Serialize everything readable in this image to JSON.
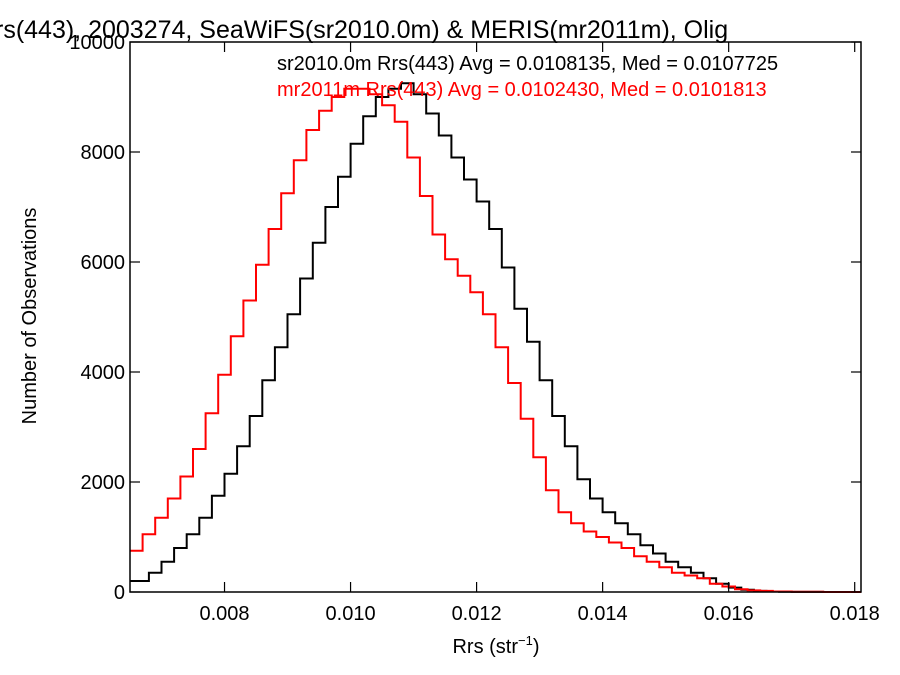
{
  "chart_data": {
    "type": "line",
    "title": "rs(443), 2003274, SeaWiFS(sr2010.0m) & MERIS(mr2011m), Olig",
    "xlabel": "Rrs (str",
    "xlabel_sup": "−1",
    "xlabel_close": ")",
    "ylabel": "Number of Observations",
    "xlim": [
      0.0065,
      0.0181
    ],
    "ylim": [
      0,
      10000
    ],
    "xticks": [
      0.008,
      0.01,
      0.012,
      0.014,
      0.016,
      0.018
    ],
    "xtick_labels": [
      "0.008",
      "0.010",
      "0.012",
      "0.014",
      "0.016",
      "0.018"
    ],
    "yticks": [
      0,
      2000,
      4000,
      6000,
      8000,
      10000
    ],
    "ytick_labels": [
      "0",
      "2000",
      "4000",
      "6000",
      "8000",
      "10000"
    ],
    "grid": false,
    "legend_position": "top-right",
    "series": [
      {
        "name": "sr2010.0m Rrs(443) Avg = 0.0108135, Med = 0.0107725",
        "color": "#000000",
        "x": [
          0.0065,
          0.0068,
          0.007,
          0.0072,
          0.0074,
          0.0076,
          0.0078,
          0.008,
          0.0082,
          0.0084,
          0.0086,
          0.0088,
          0.009,
          0.0092,
          0.0094,
          0.0096,
          0.0098,
          0.01,
          0.0102,
          0.0104,
          0.0106,
          0.0108,
          0.011,
          0.0112,
          0.0114,
          0.0116,
          0.0118,
          0.012,
          0.0122,
          0.0124,
          0.0126,
          0.0128,
          0.013,
          0.0132,
          0.0134,
          0.0136,
          0.0138,
          0.014,
          0.0142,
          0.0144,
          0.0146,
          0.0148,
          0.015,
          0.0152,
          0.0154,
          0.0156,
          0.0158,
          0.016,
          0.0162,
          0.0164,
          0.0166,
          0.0168,
          0.017,
          0.0175,
          0.0181
        ],
        "y": [
          200,
          350,
          550,
          800,
          1050,
          1350,
          1750,
          2150,
          2650,
          3200,
          3850,
          4450,
          5050,
          5700,
          6350,
          7000,
          7550,
          8150,
          8650,
          9000,
          9150,
          9250,
          9050,
          8700,
          8300,
          7900,
          7500,
          7100,
          6600,
          5900,
          5150,
          4550,
          3850,
          3200,
          2650,
          2050,
          1700,
          1450,
          1250,
          1050,
          850,
          700,
          550,
          450,
          350,
          250,
          150,
          80,
          40,
          20,
          10,
          5,
          2,
          0,
          0
        ]
      },
      {
        "name": "mr2011m Rrs(443) Avg = 0.0102430, Med = 0.0101813",
        "color": "#ff0000",
        "x": [
          0.0065,
          0.0067,
          0.0069,
          0.0071,
          0.0073,
          0.0075,
          0.0077,
          0.0079,
          0.0081,
          0.0083,
          0.0085,
          0.0087,
          0.0089,
          0.0091,
          0.0093,
          0.0095,
          0.0097,
          0.0099,
          0.0101,
          0.0103,
          0.0105,
          0.0107,
          0.0109,
          0.0111,
          0.0113,
          0.0115,
          0.0117,
          0.0119,
          0.0121,
          0.0123,
          0.0125,
          0.0127,
          0.0129,
          0.0131,
          0.0133,
          0.0135,
          0.0137,
          0.0139,
          0.0141,
          0.0143,
          0.0145,
          0.0147,
          0.0149,
          0.0151,
          0.0153,
          0.0155,
          0.0157,
          0.0159,
          0.0161,
          0.0163,
          0.0165,
          0.0167,
          0.017,
          0.0175,
          0.0181
        ],
        "y": [
          750,
          1050,
          1350,
          1700,
          2100,
          2600,
          3250,
          3950,
          4650,
          5300,
          5950,
          6600,
          7250,
          7850,
          8400,
          8750,
          9000,
          9150,
          9150,
          9050,
          8850,
          8550,
          7900,
          7200,
          6500,
          6050,
          5750,
          5450,
          5050,
          4450,
          3800,
          3150,
          2450,
          1850,
          1450,
          1250,
          1100,
          1000,
          900,
          800,
          650,
          550,
          450,
          350,
          300,
          250,
          150,
          100,
          50,
          30,
          20,
          10,
          5,
          0,
          0
        ]
      }
    ]
  }
}
